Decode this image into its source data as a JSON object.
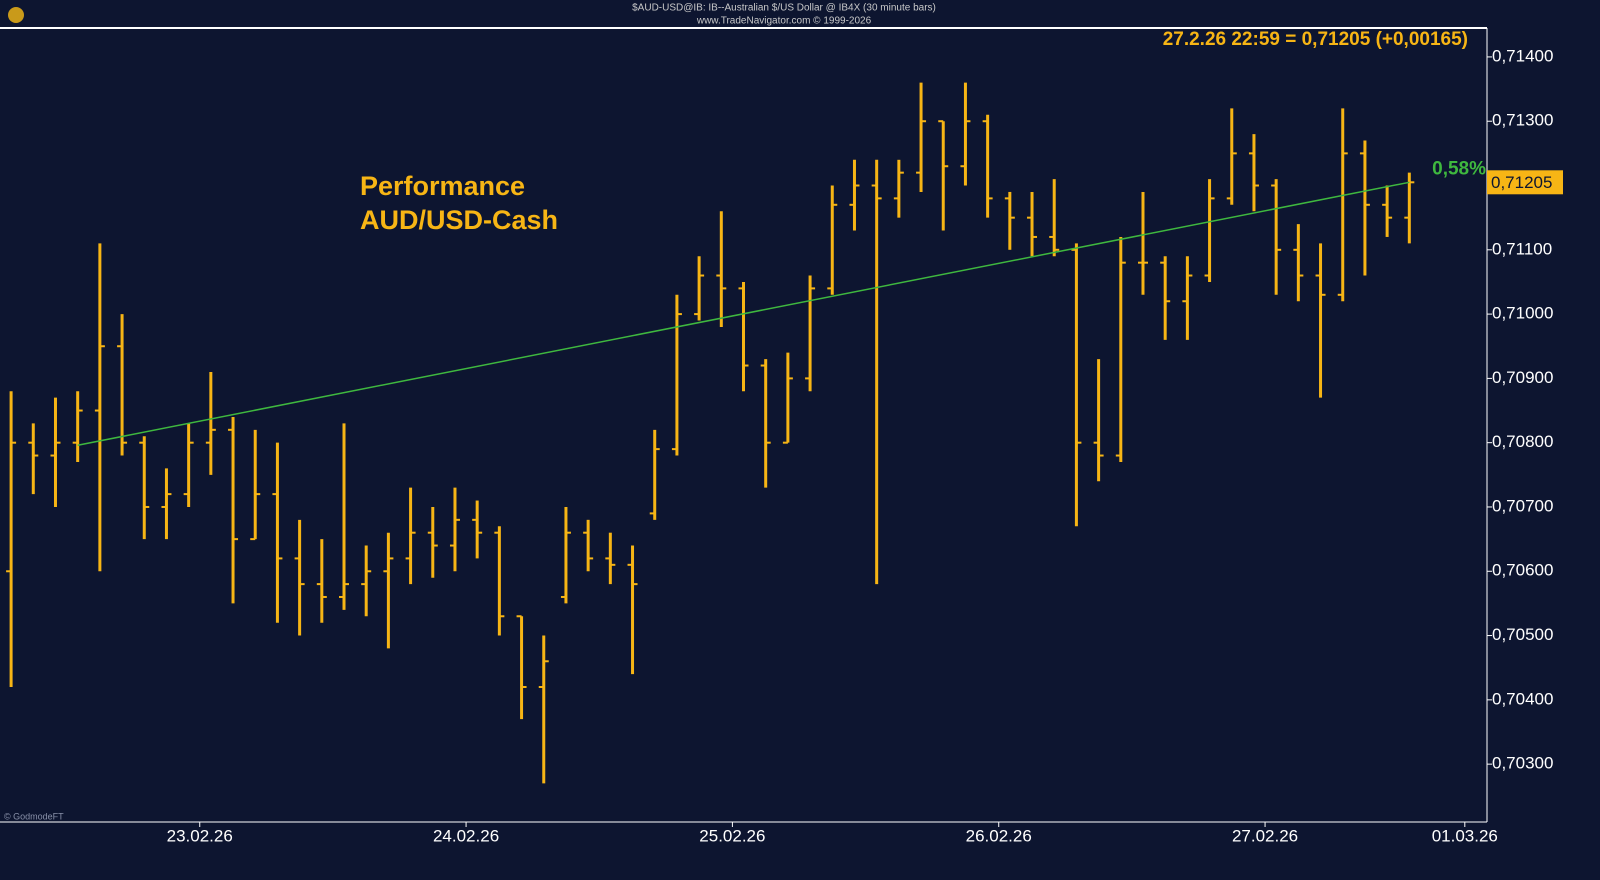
{
  "chart_data": {
    "type": "ohlc",
    "title": "$AUD-USD@IB: IB--Australian $/US Dollar @ IB4X  (30 minute bars)",
    "subtitle": "www.TradeNavigator.com © 1999-2026",
    "quote": "27.2.26 22:59 = 0,71205 (+0,00165)",
    "annotation": [
      "Performance",
      "AUD/USD-Cash"
    ],
    "watermark": "© GodmodeFT",
    "color": "#f7b515",
    "categories": [
      null,
      null,
      null,
      null,
      null,
      null,
      null,
      null,
      null,
      "23.02.26",
      null,
      null,
      null,
      null,
      null,
      null,
      null,
      null,
      null,
      null,
      null,
      "24.02.26",
      null,
      null,
      null,
      null,
      null,
      null,
      null,
      null,
      null,
      null,
      null,
      "25.02.26",
      null,
      null,
      null,
      null,
      null,
      null,
      null,
      null,
      null,
      null,
      null,
      "26.02.26",
      null,
      null,
      null,
      null,
      null,
      null,
      null,
      null,
      null,
      null,
      null,
      "27.02.26",
      null,
      null,
      null,
      null,
      null,
      null,
      null,
      null,
      "01.03.26"
    ],
    "series": [
      {
        "open": [
          0.706,
          0.708,
          0.7078,
          0.708,
          0.7085,
          0.7095,
          0.708,
          0.707,
          0.7072,
          0.708,
          0.7082,
          0.7065,
          0.7072,
          0.7062,
          0.7058,
          0.7056,
          0.7058,
          0.706,
          0.7062,
          0.7066,
          0.7064,
          0.7068,
          0.7066,
          0.7053,
          0.7042,
          0.7056,
          0.7066,
          0.7062,
          0.7061,
          0.7069,
          0.7079,
          0.71,
          0.7106,
          0.7104,
          0.7092,
          0.708,
          0.709,
          0.7104,
          0.7117,
          0.712,
          0.7118,
          0.7122,
          0.713,
          0.7123,
          0.713,
          0.7118,
          0.7115,
          0.7112,
          0.711,
          0.708,
          0.7078,
          0.7108,
          0.7108,
          0.7102,
          0.7106,
          0.7118,
          0.7125,
          0.712,
          0.711,
          0.7106,
          0.7103,
          0.7125,
          0.7117,
          0.7115,
          null,
          null,
          null
        ],
        "high": [
          0.7088,
          0.7083,
          0.7087,
          0.7088,
          0.7111,
          0.71,
          0.7081,
          0.7076,
          0.7083,
          0.7091,
          0.7084,
          0.7082,
          0.708,
          0.7068,
          0.7065,
          0.7083,
          0.7064,
          0.7066,
          0.7073,
          0.707,
          0.7073,
          0.7071,
          0.7067,
          0.7053,
          0.705,
          0.707,
          0.7068,
          0.7066,
          0.7064,
          0.7082,
          0.7103,
          0.7109,
          0.7116,
          0.7105,
          0.7093,
          0.7094,
          0.7106,
          0.712,
          0.7124,
          0.7124,
          0.7124,
          0.7136,
          0.713,
          0.7136,
          0.7131,
          0.7119,
          0.7119,
          0.7121,
          0.7111,
          0.7093,
          0.7112,
          0.7119,
          0.7109,
          0.7109,
          0.7121,
          0.7132,
          0.7128,
          0.7121,
          0.7114,
          0.7111,
          0.7132,
          0.7127,
          0.712,
          0.7122,
          null,
          null,
          null
        ],
        "low": [
          0.7042,
          0.7072,
          0.707,
          0.7077,
          0.706,
          0.7078,
          0.7065,
          0.7065,
          0.707,
          0.7075,
          0.7055,
          0.7065,
          0.7052,
          0.705,
          0.7052,
          0.7054,
          0.7053,
          0.7048,
          0.7058,
          0.7059,
          0.706,
          0.7062,
          0.705,
          0.7037,
          0.7027,
          0.7055,
          0.706,
          0.7058,
          0.7044,
          0.7068,
          0.7078,
          0.7099,
          0.7098,
          0.7088,
          0.7073,
          0.708,
          0.7088,
          0.7103,
          0.7113,
          0.7058,
          0.7115,
          0.7119,
          0.7113,
          0.712,
          0.7115,
          0.711,
          0.7109,
          0.7109,
          0.7067,
          0.7074,
          0.7077,
          0.7103,
          0.7096,
          0.7096,
          0.7105,
          0.7117,
          0.7116,
          0.7103,
          0.7102,
          0.7087,
          0.7102,
          0.7106,
          0.7112,
          0.7111,
          null,
          null,
          null
        ],
        "close": [
          0.708,
          0.7078,
          0.708,
          0.7085,
          0.7095,
          0.708,
          0.707,
          0.7072,
          0.708,
          0.7082,
          0.7065,
          0.7072,
          0.7062,
          0.7058,
          0.7056,
          0.7058,
          0.706,
          0.7062,
          0.7066,
          0.7064,
          0.7068,
          0.7066,
          0.7053,
          0.7042,
          0.7046,
          0.7066,
          0.7062,
          0.7061,
          0.7058,
          0.7079,
          0.71,
          0.7106,
          0.7104,
          0.7092,
          0.708,
          0.709,
          0.7104,
          0.7117,
          0.712,
          0.7118,
          0.7122,
          0.713,
          0.7123,
          0.713,
          0.7118,
          0.7115,
          0.7112,
          0.711,
          0.708,
          0.7078,
          0.7108,
          0.7108,
          0.7102,
          0.7106,
          0.7118,
          0.7125,
          0.712,
          0.711,
          0.7106,
          0.7103,
          0.7125,
          0.7117,
          0.7115,
          0.71205,
          null,
          null,
          null
        ]
      }
    ],
    "trendline": {
      "color": "#3fb83f",
      "x": [
        3,
        63
      ],
      "values": [
        0.70796,
        0.71205
      ],
      "label": "0,58%"
    },
    "last_price": {
      "value": 0.71205,
      "label": "0,71205"
    },
    "ylim": [
      0.7021,
      0.71445
    ],
    "yticks": [
      {
        "value": 0.703,
        "label": "0,70300"
      },
      {
        "value": 0.704,
        "label": "0,70400"
      },
      {
        "value": 0.705,
        "label": "0,70500"
      },
      {
        "value": 0.706,
        "label": "0,70600"
      },
      {
        "value": 0.707,
        "label": "0,70700"
      },
      {
        "value": 0.708,
        "label": "0,70800"
      },
      {
        "value": 0.709,
        "label": "0,70900"
      },
      {
        "value": 0.71,
        "label": "0,71000"
      },
      {
        "value": 0.711,
        "label": "0,71100"
      },
      {
        "value": 0.712,
        "label": "0,71200"
      },
      {
        "value": 0.713,
        "label": "0,71300"
      },
      {
        "value": 0.714,
        "label": "0,71400"
      }
    ]
  }
}
